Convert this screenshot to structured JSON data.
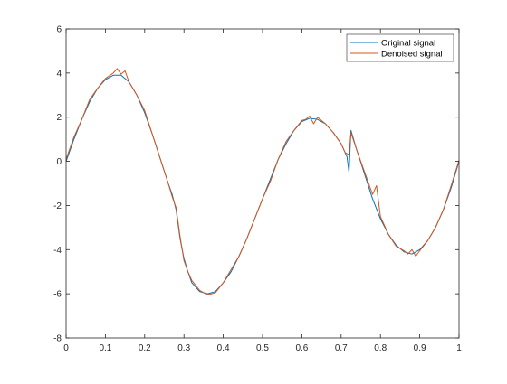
{
  "chart_data": {
    "type": "line",
    "title": "",
    "xlabel": "",
    "ylabel": "",
    "xlim": [
      0,
      1
    ],
    "ylim": [
      -8,
      6
    ],
    "xticks": [
      0,
      0.1,
      0.2,
      0.3,
      0.4,
      0.5,
      0.6,
      0.7,
      0.8,
      0.9,
      1
    ],
    "xtick_labels": [
      "0",
      "0.1",
      "0.2",
      "0.3",
      "0.4",
      "0.5",
      "0.6",
      "0.7",
      "0.8",
      "0.9",
      "1"
    ],
    "yticks": [
      -8,
      -6,
      -4,
      -2,
      0,
      2,
      4,
      6
    ],
    "ytick_labels": [
      "-8",
      "-6",
      "-4",
      "-2",
      "0",
      "2",
      "4",
      "6"
    ],
    "grid": false,
    "legend_position": "top-right",
    "series": [
      {
        "name": "Original signal",
        "color": "#0072BD",
        "x": [
          0,
          0.02,
          0.04,
          0.06,
          0.08,
          0.1,
          0.12,
          0.14,
          0.16,
          0.18,
          0.2,
          0.22,
          0.24,
          0.26,
          0.27,
          0.28,
          0.29,
          0.3,
          0.31,
          0.32,
          0.34,
          0.36,
          0.38,
          0.4,
          0.42,
          0.44,
          0.46,
          0.48,
          0.5,
          0.52,
          0.54,
          0.56,
          0.58,
          0.6,
          0.62,
          0.64,
          0.66,
          0.68,
          0.7,
          0.715,
          0.72,
          0.725,
          0.74,
          0.76,
          0.78,
          0.8,
          0.82,
          0.84,
          0.86,
          0.88,
          0.9,
          0.92,
          0.94,
          0.96,
          0.98,
          1.0
        ],
        "y": [
          0.0,
          1.0,
          1.9,
          2.7,
          3.3,
          3.7,
          3.9,
          3.9,
          3.6,
          3.0,
          2.2,
          1.2,
          0.1,
          -1.0,
          -1.5,
          -2.2,
          -3.5,
          -4.4,
          -5.0,
          -5.5,
          -5.9,
          -6.0,
          -5.9,
          -5.5,
          -5.0,
          -4.3,
          -3.5,
          -2.6,
          -1.7,
          -0.8,
          0.1,
          0.8,
          1.4,
          1.8,
          1.95,
          1.9,
          1.7,
          1.3,
          0.8,
          0.2,
          -0.5,
          1.4,
          0.5,
          -0.6,
          -1.7,
          -2.6,
          -3.3,
          -3.8,
          -4.1,
          -4.2,
          -4.0,
          -3.6,
          -3.0,
          -2.2,
          -1.2,
          0.0
        ]
      },
      {
        "name": "Denoised signal",
        "color": "#D95319",
        "x": [
          0,
          0.02,
          0.04,
          0.06,
          0.08,
          0.1,
          0.12,
          0.13,
          0.14,
          0.15,
          0.16,
          0.18,
          0.2,
          0.22,
          0.24,
          0.26,
          0.27,
          0.28,
          0.29,
          0.3,
          0.31,
          0.32,
          0.34,
          0.36,
          0.38,
          0.4,
          0.42,
          0.44,
          0.46,
          0.48,
          0.5,
          0.52,
          0.54,
          0.56,
          0.58,
          0.6,
          0.61,
          0.62,
          0.63,
          0.64,
          0.66,
          0.68,
          0.7,
          0.71,
          0.72,
          0.725,
          0.74,
          0.76,
          0.78,
          0.79,
          0.8,
          0.82,
          0.84,
          0.86,
          0.87,
          0.88,
          0.89,
          0.9,
          0.92,
          0.94,
          0.96,
          0.98,
          1.0
        ],
        "y": [
          0.1,
          1.1,
          1.9,
          2.8,
          3.3,
          3.75,
          4.0,
          4.2,
          3.95,
          4.1,
          3.6,
          3.0,
          2.3,
          1.2,
          0.1,
          -1.0,
          -1.6,
          -2.1,
          -3.4,
          -4.5,
          -5.0,
          -5.4,
          -5.85,
          -6.05,
          -5.95,
          -5.5,
          -4.9,
          -4.3,
          -3.5,
          -2.6,
          -1.7,
          -0.9,
          0.1,
          0.9,
          1.4,
          1.85,
          1.9,
          2.05,
          1.7,
          2.0,
          1.7,
          1.3,
          0.8,
          0.4,
          0.3,
          1.3,
          0.5,
          -0.5,
          -1.5,
          -1.1,
          -2.5,
          -3.3,
          -3.85,
          -4.05,
          -4.2,
          -4.0,
          -4.3,
          -4.05,
          -3.6,
          -3.0,
          -2.2,
          -1.1,
          0.05
        ]
      }
    ]
  }
}
